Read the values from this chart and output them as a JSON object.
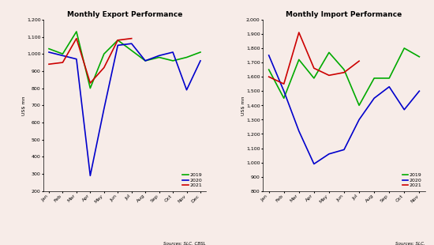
{
  "export": {
    "title": "Monthly Export Performance",
    "ylabel": "US$ mn",
    "months": [
      "Jan",
      "Feb",
      "Mar",
      "Apr",
      "May",
      "Jun",
      "Jul",
      "Aug",
      "Sep",
      "Oct",
      "Nov",
      "Dec"
    ],
    "ylim": [
      200,
      1200
    ],
    "yticks": [
      200,
      300,
      400,
      500,
      600,
      700,
      800,
      900,
      1000,
      1100,
      1200
    ],
    "series": {
      "2019": {
        "color": "#00aa00",
        "data": [
          1030,
          1000,
          1130,
          800,
          1000,
          1080,
          1020,
          960,
          980,
          960,
          980,
          1010
        ]
      },
      "2020": {
        "color": "#0000cc",
        "data": [
          1010,
          990,
          970,
          290,
          680,
          1050,
          1060,
          960,
          990,
          1010,
          790,
          960
        ]
      },
      "2021": {
        "color": "#cc0000",
        "data": [
          940,
          950,
          1090,
          830,
          920,
          1080,
          1090,
          null,
          null,
          null,
          null,
          null
        ]
      }
    },
    "source": "Sources: SLC, CBSL"
  },
  "import": {
    "title": "Monthly Import Performance",
    "ylabel": "US$ mn",
    "months": [
      "Jan",
      "Feb",
      "Mar",
      "Apr",
      "May",
      "Jun",
      "Jul",
      "Aug",
      "Sep",
      "Oct",
      "Nov"
    ],
    "ylim": [
      800,
      2000
    ],
    "yticks": [
      800,
      900,
      1000,
      1100,
      1200,
      1300,
      1400,
      1500,
      1600,
      1700,
      1800,
      1900,
      2000
    ],
    "series": {
      "2019": {
        "color": "#00aa00",
        "data": [
          1650,
          1450,
          1720,
          1590,
          1770,
          1650,
          1400,
          1590,
          1590,
          1800,
          1740
        ]
      },
      "2020": {
        "color": "#0000cc",
        "data": [
          1750,
          1500,
          1220,
          990,
          1060,
          1090,
          1300,
          1450,
          1530,
          1370,
          1500
        ]
      },
      "2021": {
        "color": "#cc0000",
        "data": [
          1600,
          1550,
          1910,
          1660,
          1610,
          1630,
          1710,
          null,
          null,
          null,
          null
        ]
      }
    },
    "source": "Sources: SLC."
  },
  "background_color": "#f7ece8",
  "legend_years": [
    "2019",
    "2020",
    "2021"
  ]
}
